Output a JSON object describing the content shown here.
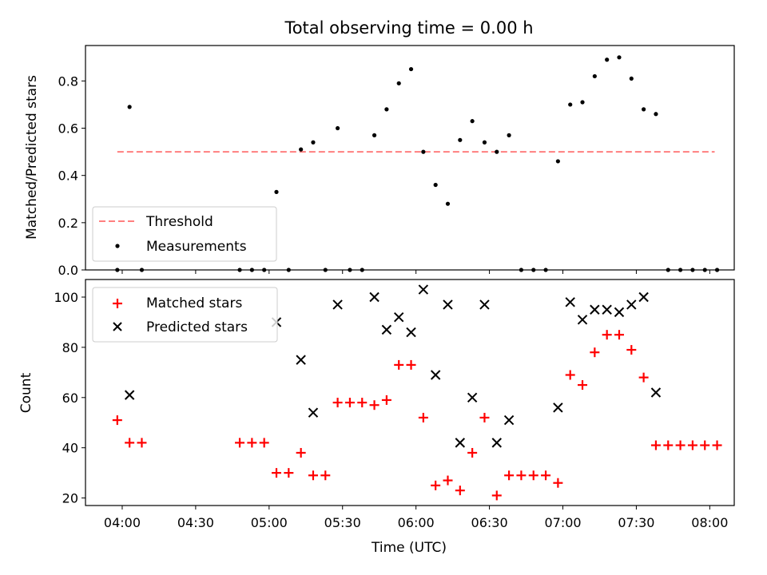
{
  "chart_data": [
    {
      "type": "scatter",
      "title": "Total observing time = 0.00 h",
      "ylabel": "Matched/Predicted stars",
      "xlabel": "",
      "xlim": [
        225,
        490
      ],
      "ylim": [
        0,
        0.95
      ],
      "yticks": [
        0.0,
        0.2,
        0.4,
        0.6,
        0.8
      ],
      "ytick_labels": [
        "0.0",
        "0.2",
        "0.4",
        "0.6",
        "0.8"
      ],
      "threshold": {
        "name": "Threshold",
        "value": 0.5,
        "x_range": [
          238,
          482
        ],
        "color": "#ff7f7f"
      },
      "series": [
        {
          "name": "Measurements",
          "color": "#000000",
          "points": [
            [
              238,
              0
            ],
            [
              243,
              0.69
            ],
            [
              248,
              0
            ],
            [
              288,
              0
            ],
            [
              293,
              0
            ],
            [
              298,
              0
            ],
            [
              303,
              0.33
            ],
            [
              308,
              0
            ],
            [
              313,
              0.51
            ],
            [
              318,
              0.54
            ],
            [
              323,
              0
            ],
            [
              328,
              0.6
            ],
            [
              333,
              0
            ],
            [
              338,
              0
            ],
            [
              343,
              0.57
            ],
            [
              348,
              0.68
            ],
            [
              353,
              0.79
            ],
            [
              358,
              0.85
            ],
            [
              363,
              0.5
            ],
            [
              368,
              0.36
            ],
            [
              373,
              0.28
            ],
            [
              378,
              0.55
            ],
            [
              383,
              0.63
            ],
            [
              388,
              0.54
            ],
            [
              393,
              0.5
            ],
            [
              398,
              0.57
            ],
            [
              403,
              0
            ],
            [
              408,
              0
            ],
            [
              413,
              0
            ],
            [
              418,
              0.46
            ],
            [
              423,
              0.7
            ],
            [
              428,
              0.71
            ],
            [
              433,
              0.82
            ],
            [
              438,
              0.89
            ],
            [
              443,
              0.9
            ],
            [
              448,
              0.81
            ],
            [
              453,
              0.68
            ],
            [
              458,
              0.66
            ],
            [
              463,
              0
            ],
            [
              468,
              0
            ],
            [
              473,
              0
            ],
            [
              478,
              0
            ],
            [
              483,
              0
            ]
          ]
        }
      ]
    },
    {
      "type": "scatter",
      "title": "",
      "xlabel": "Time (UTC)",
      "ylabel": "Count",
      "xlim": [
        225,
        490
      ],
      "ylim": [
        17,
        107
      ],
      "xticks": [
        240,
        270,
        300,
        330,
        360,
        390,
        420,
        450,
        480
      ],
      "xtick_labels": [
        "04:00",
        "04:30",
        "05:00",
        "05:30",
        "06:00",
        "06:30",
        "07:00",
        "07:30",
        "08:00"
      ],
      "yticks": [
        20,
        40,
        60,
        80,
        100
      ],
      "ytick_labels": [
        "20",
        "40",
        "60",
        "80",
        "100"
      ],
      "series": [
        {
          "name": "Matched stars",
          "marker": "+",
          "color": "#ff0000",
          "points": [
            [
              238,
              51
            ],
            [
              243,
              42
            ],
            [
              248,
              42
            ],
            [
              288,
              42
            ],
            [
              293,
              42
            ],
            [
              298,
              42
            ],
            [
              303,
              30
            ],
            [
              308,
              30
            ],
            [
              313,
              38
            ],
            [
              318,
              29
            ],
            [
              323,
              29
            ],
            [
              328,
              58
            ],
            [
              333,
              58
            ],
            [
              338,
              58
            ],
            [
              343,
              57
            ],
            [
              348,
              59
            ],
            [
              353,
              73
            ],
            [
              358,
              73
            ],
            [
              363,
              52
            ],
            [
              368,
              25
            ],
            [
              373,
              27
            ],
            [
              378,
              23
            ],
            [
              383,
              38
            ],
            [
              388,
              52
            ],
            [
              393,
              21
            ],
            [
              398,
              29
            ],
            [
              403,
              29
            ],
            [
              408,
              29
            ],
            [
              413,
              29
            ],
            [
              418,
              26
            ],
            [
              423,
              69
            ],
            [
              428,
              65
            ],
            [
              433,
              78
            ],
            [
              438,
              85
            ],
            [
              443,
              85
            ],
            [
              448,
              79
            ],
            [
              453,
              68
            ],
            [
              458,
              41
            ],
            [
              463,
              41
            ],
            [
              468,
              41
            ],
            [
              473,
              41
            ],
            [
              478,
              41
            ],
            [
              483,
              41
            ]
          ]
        },
        {
          "name": "Predicted stars",
          "marker": "x",
          "color": "#000000",
          "points": [
            [
              243,
              61
            ],
            [
              303,
              90
            ],
            [
              313,
              75
            ],
            [
              318,
              54
            ],
            [
              328,
              97
            ],
            [
              343,
              100
            ],
            [
              348,
              87
            ],
            [
              353,
              92
            ],
            [
              358,
              86
            ],
            [
              363,
              103
            ],
            [
              368,
              69
            ],
            [
              373,
              97
            ],
            [
              378,
              42
            ],
            [
              383,
              60
            ],
            [
              388,
              97
            ],
            [
              393,
              42
            ],
            [
              398,
              51
            ],
            [
              418,
              56
            ],
            [
              423,
              98
            ],
            [
              428,
              91
            ],
            [
              433,
              95
            ],
            [
              438,
              95
            ],
            [
              443,
              94
            ],
            [
              448,
              97
            ],
            [
              453,
              100
            ],
            [
              458,
              62
            ]
          ]
        }
      ]
    }
  ]
}
